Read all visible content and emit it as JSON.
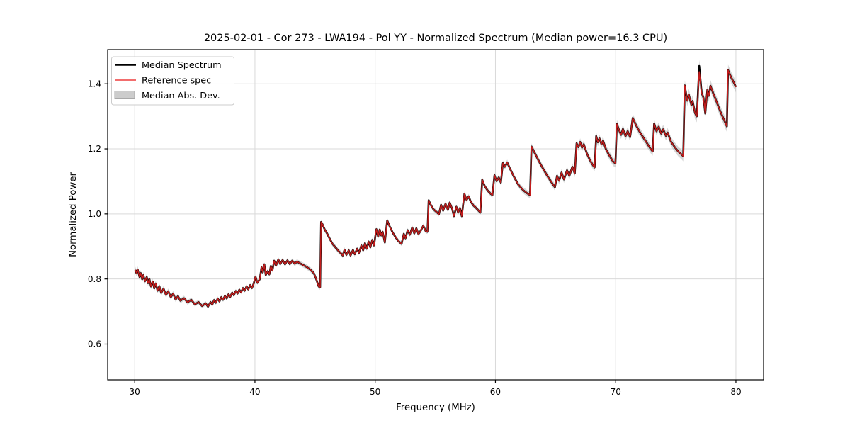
{
  "chart_data": {
    "type": "line",
    "title": "2025-02-01 - Cor 273 - LWA194 - Pol YY - Normalized Spectrum (Median power=16.3 CPU)",
    "xlabel": "Frequency (MHz)",
    "ylabel": "Normalized Power",
    "xlim": [
      27.75,
      82.3
    ],
    "ylim": [
      0.49,
      1.505
    ],
    "xticks": [
      30,
      40,
      50,
      60,
      70,
      80
    ],
    "yticks": [
      0.6,
      0.8,
      1.0,
      1.2,
      1.4
    ],
    "grid": true,
    "grid_color": "#d9d9d9",
    "background": "#ffffff",
    "legend": {
      "position": "upper-left",
      "items": [
        {
          "label": "Median Spectrum",
          "type": "line",
          "color": "#000000"
        },
        {
          "label": "Reference spec",
          "type": "line",
          "color": "#f26d6d"
        },
        {
          "label": "Median Abs. Dev.",
          "type": "patch",
          "color": "#cccccc"
        }
      ]
    },
    "series": [
      {
        "name": "Median Spectrum",
        "color": "#000000",
        "points": [
          [
            30.05,
            0.828
          ],
          [
            30.15,
            0.818
          ],
          [
            30.25,
            0.829
          ],
          [
            30.4,
            0.806
          ],
          [
            30.5,
            0.818
          ],
          [
            30.62,
            0.799
          ],
          [
            30.72,
            0.812
          ],
          [
            30.85,
            0.793
          ],
          [
            31.0,
            0.806
          ],
          [
            31.1,
            0.787
          ],
          [
            31.22,
            0.8
          ],
          [
            31.35,
            0.777
          ],
          [
            31.5,
            0.792
          ],
          [
            31.62,
            0.771
          ],
          [
            31.75,
            0.786
          ],
          [
            31.9,
            0.764
          ],
          [
            32.05,
            0.778
          ],
          [
            32.2,
            0.757
          ],
          [
            32.4,
            0.77
          ],
          [
            32.6,
            0.751
          ],
          [
            32.8,
            0.762
          ],
          [
            33.0,
            0.744
          ],
          [
            33.2,
            0.755
          ],
          [
            33.4,
            0.737
          ],
          [
            33.6,
            0.747
          ],
          [
            33.8,
            0.733
          ],
          [
            34.1,
            0.741
          ],
          [
            34.4,
            0.728
          ],
          [
            34.7,
            0.736
          ],
          [
            35.0,
            0.722
          ],
          [
            35.3,
            0.729
          ],
          [
            35.6,
            0.717
          ],
          [
            35.9,
            0.725
          ],
          [
            36.1,
            0.715
          ],
          [
            36.3,
            0.729
          ],
          [
            36.45,
            0.721
          ],
          [
            36.6,
            0.735
          ],
          [
            36.75,
            0.727
          ],
          [
            36.9,
            0.74
          ],
          [
            37.05,
            0.731
          ],
          [
            37.2,
            0.744
          ],
          [
            37.35,
            0.736
          ],
          [
            37.5,
            0.748
          ],
          [
            37.65,
            0.74
          ],
          [
            37.8,
            0.753
          ],
          [
            37.95,
            0.745
          ],
          [
            38.1,
            0.758
          ],
          [
            38.25,
            0.75
          ],
          [
            38.4,
            0.763
          ],
          [
            38.55,
            0.755
          ],
          [
            38.7,
            0.767
          ],
          [
            38.85,
            0.759
          ],
          [
            39.0,
            0.772
          ],
          [
            39.15,
            0.764
          ],
          [
            39.3,
            0.777
          ],
          [
            39.45,
            0.768
          ],
          [
            39.6,
            0.781
          ],
          [
            39.75,
            0.772
          ],
          [
            39.9,
            0.786
          ],
          [
            40.05,
            0.807
          ],
          [
            40.2,
            0.788
          ],
          [
            40.4,
            0.799
          ],
          [
            40.55,
            0.836
          ],
          [
            40.65,
            0.82
          ],
          [
            40.78,
            0.845
          ],
          [
            40.9,
            0.812
          ],
          [
            41.05,
            0.824
          ],
          [
            41.2,
            0.814
          ],
          [
            41.32,
            0.84
          ],
          [
            41.45,
            0.826
          ],
          [
            41.6,
            0.856
          ],
          [
            41.75,
            0.841
          ],
          [
            41.95,
            0.86
          ],
          [
            42.1,
            0.846
          ],
          [
            42.3,
            0.858
          ],
          [
            42.5,
            0.845
          ],
          [
            42.7,
            0.857
          ],
          [
            42.9,
            0.846
          ],
          [
            43.1,
            0.856
          ],
          [
            43.3,
            0.847
          ],
          [
            43.5,
            0.853
          ],
          [
            43.75,
            0.848
          ],
          [
            44.0,
            0.843
          ],
          [
            44.3,
            0.837
          ],
          [
            44.6,
            0.829
          ],
          [
            44.9,
            0.818
          ],
          [
            45.1,
            0.799
          ],
          [
            45.3,
            0.777
          ],
          [
            45.42,
            0.775
          ],
          [
            45.5,
            0.975
          ],
          [
            45.62,
            0.968
          ],
          [
            45.8,
            0.952
          ],
          [
            46.0,
            0.94
          ],
          [
            46.2,
            0.925
          ],
          [
            46.45,
            0.908
          ],
          [
            46.7,
            0.897
          ],
          [
            46.95,
            0.886
          ],
          [
            47.15,
            0.879
          ],
          [
            47.3,
            0.872
          ],
          [
            47.45,
            0.89
          ],
          [
            47.6,
            0.874
          ],
          [
            47.8,
            0.888
          ],
          [
            47.95,
            0.872
          ],
          [
            48.15,
            0.889
          ],
          [
            48.3,
            0.876
          ],
          [
            48.5,
            0.893
          ],
          [
            48.65,
            0.88
          ],
          [
            48.85,
            0.903
          ],
          [
            49.0,
            0.888
          ],
          [
            49.15,
            0.91
          ],
          [
            49.3,
            0.893
          ],
          [
            49.45,
            0.915
          ],
          [
            49.6,
            0.897
          ],
          [
            49.75,
            0.92
          ],
          [
            49.9,
            0.903
          ],
          [
            50.1,
            0.953
          ],
          [
            50.25,
            0.93
          ],
          [
            50.38,
            0.952
          ],
          [
            50.5,
            0.934
          ],
          [
            50.62,
            0.945
          ],
          [
            50.8,
            0.912
          ],
          [
            51.0,
            0.98
          ],
          [
            51.2,
            0.962
          ],
          [
            51.45,
            0.943
          ],
          [
            51.7,
            0.928
          ],
          [
            51.95,
            0.916
          ],
          [
            52.2,
            0.908
          ],
          [
            52.38,
            0.939
          ],
          [
            52.52,
            0.925
          ],
          [
            52.7,
            0.95
          ],
          [
            52.88,
            0.936
          ],
          [
            53.08,
            0.958
          ],
          [
            53.25,
            0.94
          ],
          [
            53.42,
            0.956
          ],
          [
            53.6,
            0.938
          ],
          [
            53.8,
            0.949
          ],
          [
            54.0,
            0.964
          ],
          [
            54.2,
            0.947
          ],
          [
            54.35,
            0.945
          ],
          [
            54.45,
            1.042
          ],
          [
            54.65,
            1.026
          ],
          [
            54.85,
            1.014
          ],
          [
            55.1,
            1.006
          ],
          [
            55.3,
            0.999
          ],
          [
            55.48,
            1.028
          ],
          [
            55.65,
            1.01
          ],
          [
            55.85,
            1.031
          ],
          [
            56.05,
            1.012
          ],
          [
            56.2,
            1.035
          ],
          [
            56.4,
            1.016
          ],
          [
            56.55,
            0.993
          ],
          [
            56.75,
            1.022
          ],
          [
            56.9,
            1.004
          ],
          [
            57.05,
            1.018
          ],
          [
            57.2,
            0.993
          ],
          [
            57.42,
            1.062
          ],
          [
            57.6,
            1.043
          ],
          [
            57.78,
            1.054
          ],
          [
            57.92,
            1.04
          ],
          [
            58.15,
            1.027
          ],
          [
            58.4,
            1.018
          ],
          [
            58.6,
            1.01
          ],
          [
            58.75,
            1.004
          ],
          [
            58.9,
            1.105
          ],
          [
            59.1,
            1.086
          ],
          [
            59.35,
            1.072
          ],
          [
            59.6,
            1.062
          ],
          [
            59.75,
            1.058
          ],
          [
            59.92,
            1.119
          ],
          [
            60.1,
            1.101
          ],
          [
            60.28,
            1.112
          ],
          [
            60.45,
            1.096
          ],
          [
            60.62,
            1.156
          ],
          [
            60.78,
            1.145
          ],
          [
            60.98,
            1.158
          ],
          [
            61.2,
            1.14
          ],
          [
            61.5,
            1.117
          ],
          [
            61.9,
            1.09
          ],
          [
            62.3,
            1.073
          ],
          [
            62.65,
            1.063
          ],
          [
            62.88,
            1.058
          ],
          [
            63.0,
            1.207
          ],
          [
            63.3,
            1.185
          ],
          [
            63.6,
            1.163
          ],
          [
            63.95,
            1.14
          ],
          [
            64.3,
            1.118
          ],
          [
            64.65,
            1.098
          ],
          [
            64.95,
            1.082
          ],
          [
            65.12,
            1.117
          ],
          [
            65.3,
            1.102
          ],
          [
            65.5,
            1.127
          ],
          [
            65.7,
            1.106
          ],
          [
            65.95,
            1.134
          ],
          [
            66.15,
            1.117
          ],
          [
            66.4,
            1.145
          ],
          [
            66.6,
            1.124
          ],
          [
            66.75,
            1.217
          ],
          [
            66.9,
            1.205
          ],
          [
            67.05,
            1.221
          ],
          [
            67.2,
            1.204
          ],
          [
            67.35,
            1.214
          ],
          [
            67.6,
            1.186
          ],
          [
            67.85,
            1.166
          ],
          [
            68.1,
            1.15
          ],
          [
            68.25,
            1.143
          ],
          [
            68.38,
            1.239
          ],
          [
            68.52,
            1.22
          ],
          [
            68.65,
            1.232
          ],
          [
            68.82,
            1.214
          ],
          [
            68.95,
            1.225
          ],
          [
            69.2,
            1.198
          ],
          [
            69.5,
            1.178
          ],
          [
            69.8,
            1.16
          ],
          [
            69.98,
            1.156
          ],
          [
            70.1,
            1.276
          ],
          [
            70.3,
            1.256
          ],
          [
            70.45,
            1.243
          ],
          [
            70.6,
            1.261
          ],
          [
            70.82,
            1.239
          ],
          [
            71.0,
            1.254
          ],
          [
            71.2,
            1.236
          ],
          [
            71.42,
            1.295
          ],
          [
            71.7,
            1.272
          ],
          [
            72.0,
            1.252
          ],
          [
            72.3,
            1.235
          ],
          [
            72.6,
            1.218
          ],
          [
            72.9,
            1.2
          ],
          [
            73.08,
            1.192
          ],
          [
            73.2,
            1.278
          ],
          [
            73.4,
            1.254
          ],
          [
            73.58,
            1.268
          ],
          [
            73.78,
            1.247
          ],
          [
            73.95,
            1.26
          ],
          [
            74.18,
            1.24
          ],
          [
            74.32,
            1.25
          ],
          [
            74.6,
            1.222
          ],
          [
            74.9,
            1.206
          ],
          [
            75.2,
            1.192
          ],
          [
            75.5,
            1.182
          ],
          [
            75.62,
            1.177
          ],
          [
            75.75,
            1.395
          ],
          [
            75.95,
            1.348
          ],
          [
            76.08,
            1.367
          ],
          [
            76.3,
            1.335
          ],
          [
            76.4,
            1.347
          ],
          [
            76.6,
            1.31
          ],
          [
            76.75,
            1.3
          ],
          [
            76.95,
            1.455
          ],
          [
            77.15,
            1.372
          ],
          [
            77.3,
            1.358
          ],
          [
            77.45,
            1.308
          ],
          [
            77.62,
            1.381
          ],
          [
            77.75,
            1.363
          ],
          [
            77.88,
            1.394
          ],
          [
            78.1,
            1.372
          ],
          [
            78.4,
            1.344
          ],
          [
            78.7,
            1.315
          ],
          [
            79.0,
            1.29
          ],
          [
            79.25,
            1.269
          ],
          [
            79.35,
            1.442
          ],
          [
            79.6,
            1.42
          ],
          [
            79.85,
            1.402
          ],
          [
            80.0,
            1.39
          ]
        ]
      },
      {
        "name": "Reference spec",
        "color": "#d42020",
        "opacity": 0.92,
        "same_as_median_except": [
          [
            76.95,
            1.437
          ]
        ]
      }
    ],
    "band": {
      "name": "Median Abs. Dev.",
      "color": "#a0a0a0",
      "opacity": 0.42,
      "halfwidth_control_points": [
        [
          30,
          0.01
        ],
        [
          35,
          0.007
        ],
        [
          40,
          0.006
        ],
        [
          45,
          0.008
        ],
        [
          50,
          0.007
        ],
        [
          55,
          0.007
        ],
        [
          60,
          0.008
        ],
        [
          63,
          0.01
        ],
        [
          66,
          0.011
        ],
        [
          70,
          0.013
        ],
        [
          73,
          0.013
        ],
        [
          75.5,
          0.015
        ],
        [
          76,
          0.017
        ],
        [
          77,
          0.019
        ],
        [
          78,
          0.017
        ],
        [
          80,
          0.017
        ]
      ]
    }
  }
}
